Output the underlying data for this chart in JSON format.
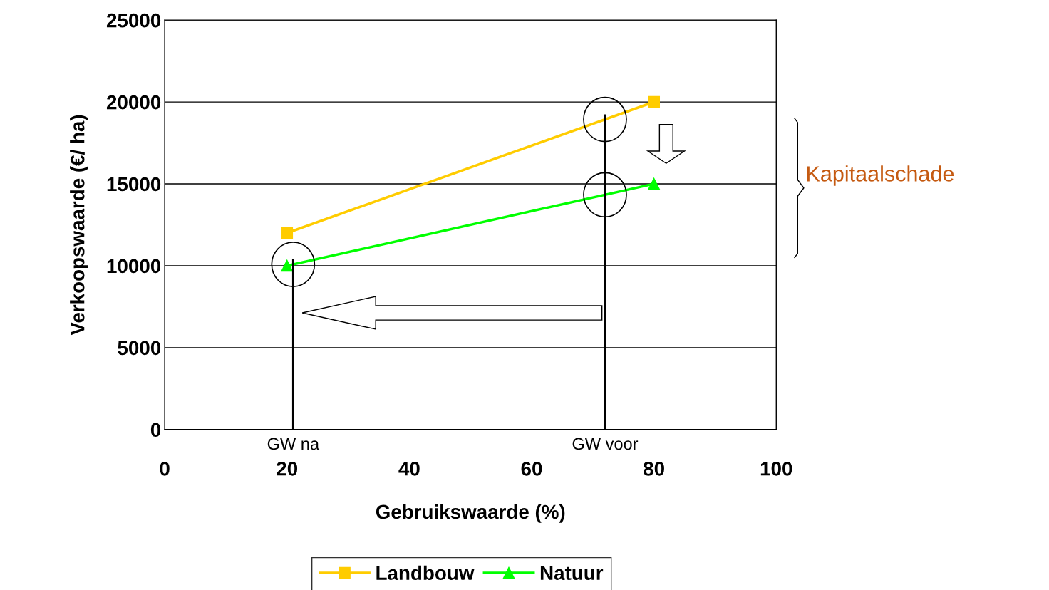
{
  "chart_data": {
    "type": "line",
    "xlabel": "Gebruikswaarde (%)",
    "ylabel": "Verkoopswaarde (€/ ha)",
    "x": [
      20,
      80
    ],
    "series": [
      {
        "name": "Landbouw",
        "color": "#ffcc00",
        "marker": "square",
        "values": [
          12000,
          20000
        ]
      },
      {
        "name": "Natuur",
        "color": "#00ff00",
        "marker": "triangle",
        "values": [
          10000,
          15000
        ]
      }
    ],
    "xlim": [
      0,
      100
    ],
    "xticks": [
      0,
      20,
      40,
      60,
      80,
      100
    ],
    "ylim": [
      0,
      25000
    ],
    "yticks": [
      0,
      5000,
      10000,
      15000,
      20000,
      25000
    ],
    "grid": "y",
    "legend": "bottom",
    "line_style": "solid",
    "ref_lines": [
      {
        "axis": "x",
        "value": 21,
        "label": "GW na",
        "color": "#000000"
      },
      {
        "axis": "x",
        "value": 72,
        "label": "GW voor",
        "color": "#000000"
      }
    ],
    "annotations": [
      "Kapitaalschade"
    ]
  }
}
